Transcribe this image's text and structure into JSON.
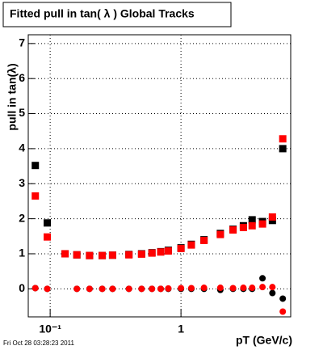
{
  "chart_data": {
    "type": "scatter",
    "title": "Fitted pull in tan( λ )  Global Tracks",
    "y_label": "pull in tan(λ)",
    "x_label": "pT (GeV/c)",
    "footer": "Fri Oct 28 03:28:23 2011",
    "log_x": true,
    "grid": true,
    "xlim": [
      0.068,
      6.9
    ],
    "ylim": [
      -0.8,
      7.25
    ],
    "xticks": [
      {
        "value": 0.1,
        "label": "10⁻¹"
      },
      1
    ],
    "yticks": [
      0,
      1,
      2,
      3,
      4,
      5,
      6,
      7
    ],
    "x": [
      0.077,
      0.095,
      0.13,
      0.16,
      0.2,
      0.25,
      0.3,
      0.4,
      0.5,
      0.6,
      0.7,
      0.8,
      1.0,
      1.2,
      1.5,
      2.0,
      2.5,
      3.0,
      3.5,
      4.2,
      5.0,
      6.0
    ],
    "series": [
      {
        "color": "#000000",
        "marker": "square",
        "values": [
          3.52,
          1.88,
          1.0,
          0.97,
          0.95,
          0.95,
          0.96,
          0.98,
          1.0,
          1.03,
          1.06,
          1.1,
          1.17,
          1.27,
          1.4,
          1.58,
          1.7,
          1.8,
          1.97,
          1.92,
          1.95,
          4.0
        ]
      },
      {
        "color": "#000000",
        "marker": "circle",
        "values": [
          0.02,
          0.0,
          null,
          0.0,
          0.0,
          0.0,
          0.0,
          0.0,
          0.0,
          0.0,
          0.0,
          0.0,
          0.0,
          0.0,
          0.0,
          -0.03,
          0.0,
          0.0,
          0.0,
          0.3,
          -0.12,
          -0.28
        ]
      },
      {
        "color": "#ff0000",
        "marker": "square",
        "values": [
          2.65,
          1.48,
          1.0,
          0.97,
          0.95,
          0.95,
          0.96,
          0.97,
          0.99,
          1.02,
          1.05,
          1.08,
          1.15,
          1.25,
          1.38,
          1.55,
          1.68,
          1.75,
          1.8,
          1.85,
          2.05,
          4.28
        ]
      },
      {
        "color": "#ff0000",
        "marker": "circle",
        "values": [
          0.02,
          0.0,
          null,
          0.0,
          0.0,
          0.0,
          0.0,
          0.0,
          0.0,
          0.0,
          0.0,
          0.01,
          0.02,
          0.02,
          0.03,
          0.03,
          0.02,
          0.03,
          0.03,
          0.05,
          0.05,
          -0.65
        ]
      }
    ]
  }
}
